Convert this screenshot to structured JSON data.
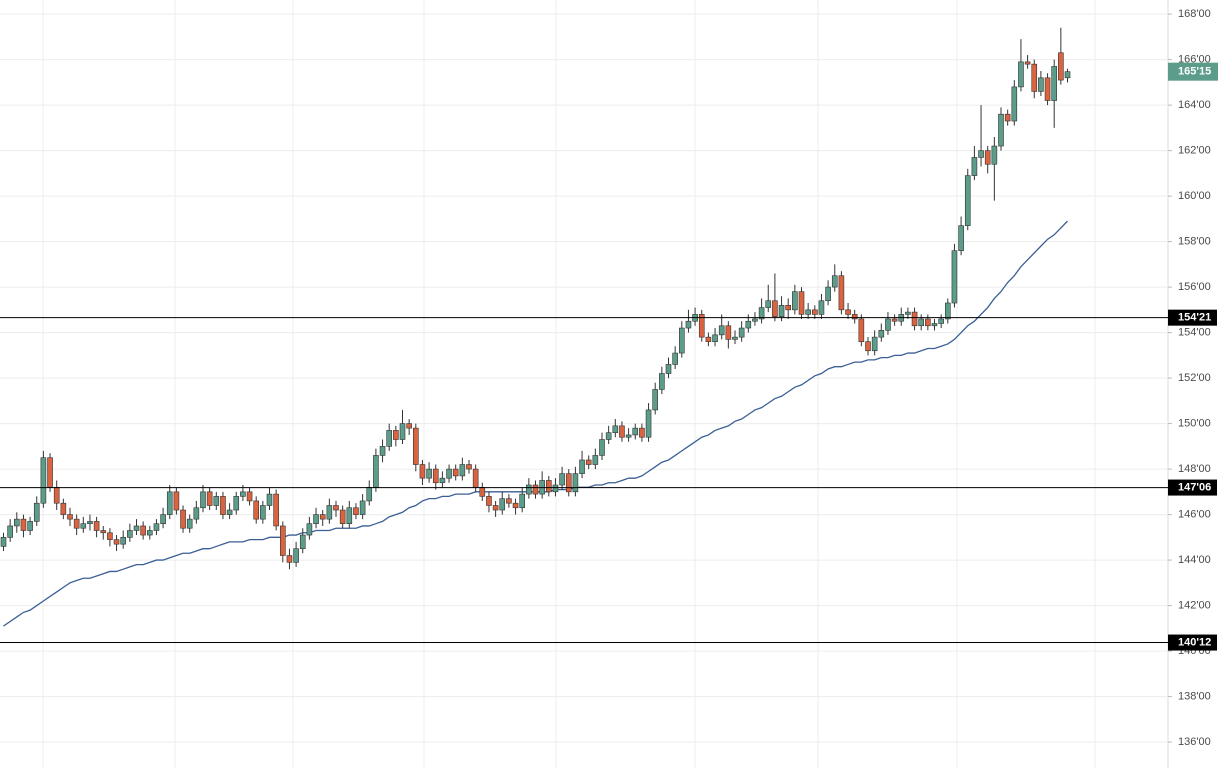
{
  "chart_data": {
    "type": "candlestick",
    "ylim": [
      134.86,
      168.62
    ],
    "yticks": [
      {
        "value": 136,
        "label": "136'00"
      },
      {
        "value": 138,
        "label": "138'00"
      },
      {
        "value": 140,
        "label": "140'00"
      },
      {
        "value": 142,
        "label": "142'00"
      },
      {
        "value": 144,
        "label": "144'00"
      },
      {
        "value": 146,
        "label": "146'00"
      },
      {
        "value": 148,
        "label": "148'00"
      },
      {
        "value": 150,
        "label": "150'00"
      },
      {
        "value": 152,
        "label": "152'00"
      },
      {
        "value": 154,
        "label": "154'00"
      },
      {
        "value": 156,
        "label": "156'00"
      },
      {
        "value": 158,
        "label": "158'00"
      },
      {
        "value": 160,
        "label": "160'00"
      },
      {
        "value": 162,
        "label": "162'00"
      },
      {
        "value": 164,
        "label": "164'00"
      },
      {
        "value": 166,
        "label": "166'00"
      },
      {
        "value": 168,
        "label": "168'00"
      }
    ],
    "grid": true,
    "levels": [
      {
        "value": 154.65625,
        "label": "154'21"
      },
      {
        "value": 147.1875,
        "label": "147'06"
      },
      {
        "value": 140.375,
        "label": "140'12"
      }
    ],
    "level_color": "#000000",
    "last_price": {
      "value": 165.46875,
      "label": "165'15",
      "color": "#5b9c8a"
    },
    "candles": {
      "up_color": "#5b9c8a",
      "down_color": "#d9643f",
      "ohlc": [
        [
          144.6,
          145.2,
          144.4,
          145.0
        ],
        [
          145.0,
          145.8,
          144.8,
          145.5
        ],
        [
          145.5,
          146.1,
          145.2,
          145.8
        ],
        [
          145.8,
          146.0,
          145.0,
          145.3
        ],
        [
          145.3,
          145.9,
          145.1,
          145.7
        ],
        [
          145.7,
          146.8,
          145.5,
          146.5
        ],
        [
          146.5,
          148.8,
          146.3,
          148.5
        ],
        [
          148.5,
          148.7,
          147.0,
          147.2
        ],
        [
          147.2,
          147.5,
          146.2,
          146.5
        ],
        [
          146.5,
          146.7,
          145.8,
          146.0
        ],
        [
          146.0,
          146.3,
          145.5,
          145.8
        ],
        [
          145.8,
          146.0,
          145.1,
          145.4
        ],
        [
          145.4,
          145.9,
          145.2,
          145.6
        ],
        [
          145.6,
          146.0,
          145.3,
          145.7
        ],
        [
          145.7,
          145.9,
          145.0,
          145.3
        ],
        [
          145.3,
          145.5,
          144.9,
          145.2
        ],
        [
          145.2,
          145.4,
          144.6,
          144.9
        ],
        [
          144.9,
          145.1,
          144.4,
          144.7
        ],
        [
          144.7,
          145.3,
          144.5,
          145.0
        ],
        [
          145.0,
          145.6,
          144.8,
          145.3
        ],
        [
          145.3,
          145.8,
          145.1,
          145.5
        ],
        [
          145.5,
          145.7,
          144.9,
          145.1
        ],
        [
          145.1,
          145.5,
          144.9,
          145.3
        ],
        [
          145.3,
          145.8,
          145.1,
          145.6
        ],
        [
          145.6,
          146.3,
          145.4,
          146.0
        ],
        [
          146.0,
          147.3,
          145.8,
          147.0
        ],
        [
          147.0,
          147.2,
          146.0,
          146.2
        ],
        [
          146.2,
          146.4,
          145.2,
          145.4
        ],
        [
          145.4,
          146.0,
          145.2,
          145.8
        ],
        [
          145.8,
          146.6,
          145.6,
          146.3
        ],
        [
          146.3,
          147.3,
          146.1,
          147.0
        ],
        [
          147.0,
          147.2,
          146.2,
          146.4
        ],
        [
          146.4,
          147.0,
          146.2,
          146.8
        ],
        [
          146.8,
          147.0,
          145.8,
          146.0
        ],
        [
          146.0,
          146.5,
          145.8,
          146.2
        ],
        [
          146.2,
          147.0,
          146.0,
          146.8
        ],
        [
          146.8,
          147.3,
          146.6,
          147.0
        ],
        [
          147.0,
          147.2,
          146.4,
          146.6
        ],
        [
          146.6,
          146.8,
          145.6,
          145.8
        ],
        [
          145.8,
          146.6,
          145.6,
          146.4
        ],
        [
          146.4,
          147.2,
          146.2,
          146.9
        ],
        [
          146.9,
          147.1,
          145.3,
          145.5
        ],
        [
          145.5,
          145.7,
          143.9,
          144.2
        ],
        [
          144.2,
          144.5,
          143.6,
          143.9
        ],
        [
          143.9,
          144.8,
          143.7,
          144.5
        ],
        [
          144.5,
          145.4,
          144.3,
          145.1
        ],
        [
          145.1,
          145.9,
          144.9,
          145.6
        ],
        [
          145.6,
          146.3,
          145.4,
          146.0
        ],
        [
          146.0,
          146.2,
          145.5,
          145.8
        ],
        [
          145.8,
          146.7,
          145.6,
          146.4
        ],
        [
          146.4,
          146.6,
          145.9,
          146.2
        ],
        [
          146.2,
          146.4,
          145.4,
          145.6
        ],
        [
          145.6,
          146.6,
          145.4,
          146.3
        ],
        [
          146.3,
          146.5,
          145.8,
          146.0
        ],
        [
          146.0,
          146.9,
          145.8,
          146.6
        ],
        [
          146.6,
          147.5,
          146.4,
          147.2
        ],
        [
          147.2,
          148.9,
          147.0,
          148.6
        ],
        [
          148.6,
          149.3,
          148.3,
          149.0
        ],
        [
          149.0,
          150.0,
          148.8,
          149.7
        ],
        [
          149.7,
          149.9,
          149.0,
          149.3
        ],
        [
          149.3,
          150.6,
          149.1,
          150.0
        ],
        [
          150.0,
          150.2,
          149.5,
          149.8
        ],
        [
          149.8,
          150.0,
          147.9,
          148.2
        ],
        [
          148.2,
          148.4,
          147.3,
          147.6
        ],
        [
          147.6,
          148.3,
          147.4,
          148.0
        ],
        [
          148.0,
          148.2,
          147.1,
          147.4
        ],
        [
          147.4,
          147.9,
          147.2,
          147.6
        ],
        [
          147.6,
          148.2,
          147.4,
          148.0
        ],
        [
          148.0,
          148.2,
          147.5,
          147.7
        ],
        [
          147.7,
          148.5,
          147.5,
          148.2
        ],
        [
          148.2,
          148.4,
          147.8,
          148.0
        ],
        [
          148.0,
          148.2,
          147.0,
          147.2
        ],
        [
          147.2,
          147.4,
          146.6,
          146.8
        ],
        [
          146.8,
          147.0,
          146.1,
          146.4
        ],
        [
          146.4,
          146.6,
          145.9,
          146.2
        ],
        [
          146.2,
          147.0,
          146.0,
          146.7
        ],
        [
          146.7,
          146.9,
          146.3,
          146.5
        ],
        [
          146.5,
          146.7,
          146.0,
          146.3
        ],
        [
          146.3,
          147.2,
          146.1,
          146.9
        ],
        [
          146.9,
          147.6,
          146.7,
          147.3
        ],
        [
          147.3,
          147.5,
          146.7,
          146.9
        ],
        [
          146.9,
          147.9,
          146.7,
          147.5
        ],
        [
          147.5,
          147.7,
          146.8,
          147.0
        ],
        [
          147.0,
          147.6,
          146.8,
          147.3
        ],
        [
          147.3,
          148.1,
          147.1,
          147.8
        ],
        [
          147.8,
          148.0,
          146.8,
          147.0
        ],
        [
          147.0,
          148.1,
          146.8,
          147.8
        ],
        [
          147.8,
          148.8,
          147.6,
          148.4
        ],
        [
          148.4,
          148.6,
          148.0,
          148.2
        ],
        [
          148.2,
          148.9,
          148.0,
          148.6
        ],
        [
          148.6,
          149.6,
          148.4,
          149.3
        ],
        [
          149.3,
          149.9,
          149.1,
          149.6
        ],
        [
          149.6,
          150.2,
          149.4,
          149.9
        ],
        [
          149.9,
          150.1,
          149.2,
          149.4
        ],
        [
          149.4,
          149.8,
          149.2,
          149.5
        ],
        [
          149.5,
          150.0,
          149.3,
          149.8
        ],
        [
          149.8,
          150.0,
          149.2,
          149.4
        ],
        [
          149.4,
          150.9,
          149.2,
          150.6
        ],
        [
          150.6,
          151.8,
          150.4,
          151.5
        ],
        [
          151.5,
          152.5,
          151.3,
          152.2
        ],
        [
          152.2,
          152.9,
          152.0,
          152.6
        ],
        [
          152.6,
          153.4,
          152.4,
          153.1
        ],
        [
          153.1,
          154.5,
          152.9,
          154.2
        ],
        [
          154.2,
          155.0,
          154.0,
          154.5
        ],
        [
          154.5,
          155.1,
          154.3,
          154.8
        ],
        [
          154.8,
          155.0,
          153.6,
          153.8
        ],
        [
          153.8,
          154.0,
          153.4,
          153.6
        ],
        [
          153.6,
          154.2,
          153.4,
          153.9
        ],
        [
          153.9,
          154.8,
          153.7,
          154.3
        ],
        [
          154.3,
          154.5,
          153.3,
          153.7
        ],
        [
          153.7,
          154.1,
          153.5,
          153.8
        ],
        [
          153.8,
          154.5,
          153.6,
          154.2
        ],
        [
          154.2,
          154.8,
          154.0,
          154.5
        ],
        [
          154.5,
          154.9,
          154.3,
          154.6
        ],
        [
          154.6,
          155.5,
          154.4,
          155.1
        ],
        [
          155.1,
          156.1,
          154.9,
          155.4
        ],
        [
          155.4,
          156.6,
          154.5,
          154.7
        ],
        [
          154.7,
          155.6,
          154.5,
          155.2
        ],
        [
          155.2,
          155.5,
          154.6,
          155.0
        ],
        [
          155.0,
          156.1,
          154.8,
          155.8
        ],
        [
          155.8,
          156.0,
          154.6,
          154.8
        ],
        [
          154.8,
          155.3,
          154.6,
          155.0
        ],
        [
          155.0,
          155.2,
          154.6,
          154.8
        ],
        [
          154.8,
          155.7,
          154.6,
          155.4
        ],
        [
          155.4,
          156.3,
          155.2,
          156.0
        ],
        [
          156.0,
          157.0,
          155.8,
          156.5
        ],
        [
          156.5,
          156.7,
          154.8,
          155.0
        ],
        [
          155.0,
          155.3,
          154.6,
          154.8
        ],
        [
          154.8,
          155.0,
          154.4,
          154.6
        ],
        [
          154.6,
          154.8,
          153.4,
          153.6
        ],
        [
          153.6,
          153.8,
          153.0,
          153.2
        ],
        [
          153.2,
          154.1,
          153.0,
          153.8
        ],
        [
          153.8,
          154.4,
          153.6,
          154.1
        ],
        [
          154.1,
          154.9,
          153.9,
          154.6
        ],
        [
          154.6,
          154.8,
          154.3,
          154.5
        ],
        [
          154.5,
          155.1,
          154.3,
          154.8
        ],
        [
          154.8,
          155.1,
          154.6,
          154.9
        ],
        [
          154.9,
          155.1,
          154.1,
          154.3
        ],
        [
          154.3,
          154.8,
          154.1,
          154.6
        ],
        [
          154.6,
          154.8,
          154.1,
          154.3
        ],
        [
          154.3,
          154.6,
          154.1,
          154.4
        ],
        [
          154.4,
          154.8,
          154.2,
          154.6
        ],
        [
          154.6,
          155.5,
          154.4,
          155.3
        ],
        [
          155.3,
          157.9,
          155.1,
          157.6
        ],
        [
          157.6,
          159.1,
          157.4,
          158.7
        ],
        [
          158.7,
          161.2,
          158.5,
          160.9
        ],
        [
          160.9,
          162.2,
          160.7,
          161.7
        ],
        [
          161.7,
          164.0,
          161.3,
          162.0
        ],
        [
          162.0,
          162.2,
          161.0,
          161.4
        ],
        [
          161.4,
          162.6,
          159.8,
          162.2
        ],
        [
          162.2,
          163.9,
          162.0,
          163.6
        ],
        [
          163.6,
          163.8,
          163.1,
          163.3
        ],
        [
          163.3,
          165.1,
          163.1,
          164.8
        ],
        [
          164.8,
          166.9,
          164.6,
          165.9
        ],
        [
          165.9,
          166.2,
          165.6,
          165.8
        ],
        [
          165.8,
          166.0,
          164.3,
          164.6
        ],
        [
          164.6,
          165.5,
          164.4,
          165.2
        ],
        [
          165.2,
          165.4,
          164.0,
          164.2
        ],
        [
          164.2,
          166.0,
          163.0,
          165.7
        ],
        [
          166.3,
          167.4,
          164.9,
          165.1
        ],
        [
          165.2,
          165.6,
          165.0,
          165.47
        ]
      ]
    },
    "ma": {
      "color": "#3a5f96",
      "values": [
        141.1,
        141.3,
        141.5,
        141.7,
        141.8,
        142.0,
        142.2,
        142.4,
        142.6,
        142.8,
        143.0,
        143.1,
        143.2,
        143.2,
        143.3,
        143.4,
        143.5,
        143.5,
        143.6,
        143.7,
        143.8,
        143.8,
        143.9,
        144.0,
        144.0,
        144.1,
        144.2,
        144.3,
        144.3,
        144.4,
        144.5,
        144.5,
        144.6,
        144.7,
        144.8,
        144.8,
        144.8,
        144.9,
        144.9,
        144.9,
        145.0,
        145.0,
        145.0,
        145.1,
        145.1,
        145.2,
        145.2,
        145.3,
        145.3,
        145.3,
        145.4,
        145.4,
        145.4,
        145.4,
        145.5,
        145.5,
        145.6,
        145.7,
        145.9,
        146.0,
        146.1,
        146.3,
        146.4,
        146.6,
        146.7,
        146.7,
        146.8,
        146.8,
        146.9,
        146.9,
        146.9,
        147.0,
        147.0,
        147.0,
        147.0,
        147.0,
        147.0,
        147.0,
        147.0,
        147.0,
        147.0,
        147.0,
        147.0,
        147.1,
        147.1,
        147.1,
        147.2,
        147.2,
        147.2,
        147.3,
        147.3,
        147.4,
        147.4,
        147.5,
        147.6,
        147.6,
        147.7,
        147.9,
        148.1,
        148.3,
        148.4,
        148.6,
        148.8,
        149.0,
        149.2,
        149.4,
        149.5,
        149.7,
        149.8,
        149.9,
        150.1,
        150.2,
        150.4,
        150.6,
        150.7,
        150.9,
        151.1,
        151.2,
        151.4,
        151.6,
        151.7,
        151.9,
        152.1,
        152.2,
        152.4,
        152.5,
        152.5,
        152.6,
        152.7,
        152.7,
        152.8,
        152.8,
        152.9,
        152.9,
        153.0,
        153.0,
        153.1,
        153.1,
        153.2,
        153.3,
        153.3,
        153.4,
        153.5,
        153.7,
        154.0,
        154.3,
        154.5,
        154.8,
        155.1,
        155.5,
        155.8,
        156.2,
        156.5,
        156.9,
        157.2,
        157.5,
        157.8,
        158.1,
        158.3,
        158.6,
        158.9
      ]
    }
  }
}
